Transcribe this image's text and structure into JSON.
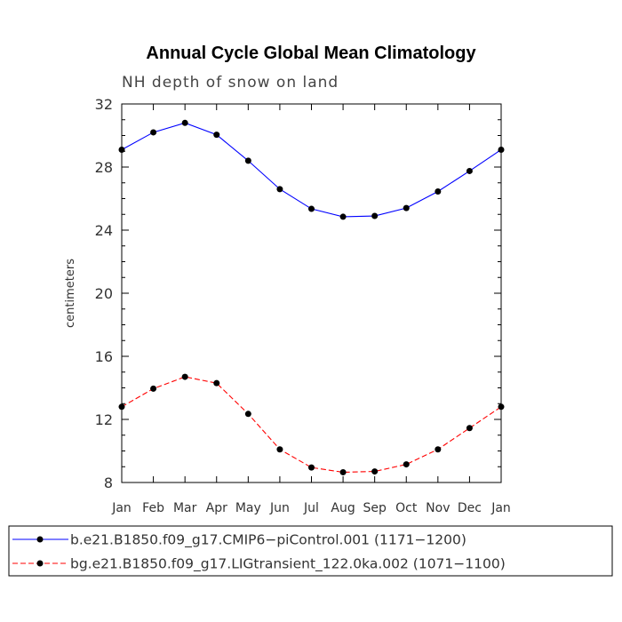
{
  "chart_data": {
    "type": "line",
    "title": "Annual Cycle Global Mean Climatology",
    "subtitle": "NH depth of snow on land",
    "xlabel": "",
    "ylabel": "centimeters",
    "categories": [
      "Jan",
      "Feb",
      "Mar",
      "Apr",
      "May",
      "Jun",
      "Jul",
      "Aug",
      "Sep",
      "Oct",
      "Nov",
      "Dec",
      "Jan"
    ],
    "ylim": [
      8,
      32
    ],
    "yticks": [
      8,
      12,
      16,
      20,
      24,
      28,
      32
    ],
    "series": [
      {
        "name": "b.e21.B1850.f09_g17.CMIP6−piControl.001 (1171−1200)",
        "color": "#0000ff",
        "dashed": false,
        "values": [
          29.1,
          30.2,
          30.8,
          30.05,
          28.4,
          26.6,
          25.35,
          24.85,
          24.9,
          25.4,
          26.45,
          27.75,
          29.1
        ]
      },
      {
        "name": "bg.e21.B1850.f09_g17.LIGtransient_122.0ka.002 (1071−1100)",
        "color": "#ff0000",
        "dashed": true,
        "values": [
          12.8,
          13.95,
          14.7,
          14.3,
          12.35,
          10.1,
          8.95,
          8.65,
          8.7,
          9.15,
          10.1,
          11.45,
          12.8
        ]
      }
    ]
  }
}
